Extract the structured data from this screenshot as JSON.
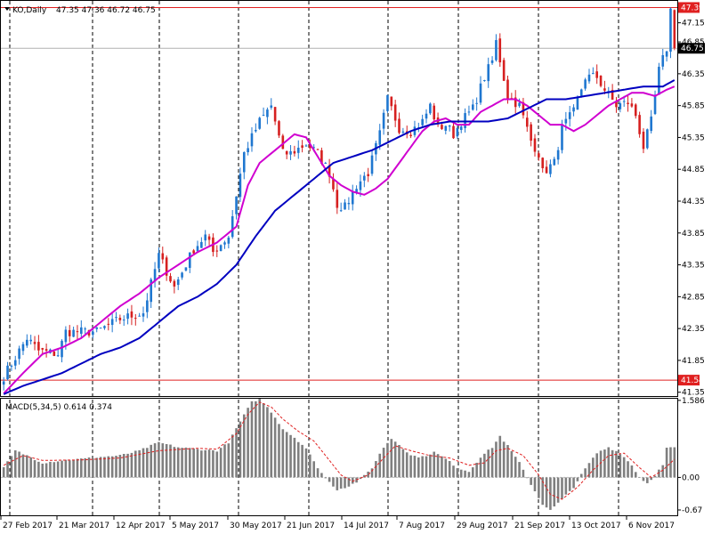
{
  "chart_data": {
    "type": "candlestick",
    "symbol": "KO",
    "timeframe": "Daily",
    "ohlc_readout": [
      "47.35",
      "47.36",
      "46.72",
      "46.75"
    ],
    "price_axis": {
      "ylim": [
        41.29,
        47.48
      ],
      "ticks": [
        "47.15",
        "46.85",
        "46.35",
        "45.85",
        "45.35",
        "44.85",
        "44.35",
        "43.85",
        "43.35",
        "42.85",
        "42.35",
        "41.85",
        "41.35"
      ],
      "tick_values": [
        47.15,
        46.85,
        46.35,
        45.85,
        45.35,
        44.85,
        44.35,
        43.85,
        43.35,
        42.85,
        42.35,
        41.85,
        41.35
      ]
    },
    "price_labels": {
      "high_line": "47.39",
      "low_line": "41.54",
      "current": "46.75"
    },
    "x_labels": [
      "27 Feb 2017",
      "21 Mar 2017",
      "12 Apr 2017",
      "5 May 2017",
      "30 May 2017",
      "21 Jun 2017",
      "14 Jul 2017",
      "7 Aug 2017",
      "29 Aug 2017",
      "21 Sep 2017",
      "13 Oct 2017",
      "6 Nov 2017"
    ],
    "grid": "vertical dashed",
    "close_path": [
      [
        0,
        41.6
      ],
      [
        6,
        42.2
      ],
      [
        9,
        42.0
      ],
      [
        14,
        41.95
      ],
      [
        16,
        42.3
      ],
      [
        24,
        42.3
      ],
      [
        30,
        42.5
      ],
      [
        36,
        42.6
      ],
      [
        40,
        43.5
      ],
      [
        44,
        43.0
      ],
      [
        49,
        43.6
      ],
      [
        52,
        43.8
      ],
      [
        54,
        43.55
      ],
      [
        58,
        43.8
      ],
      [
        62,
        45.1
      ],
      [
        66,
        45.6
      ],
      [
        69,
        45.85
      ],
      [
        72,
        45.1
      ],
      [
        74,
        45.1
      ],
      [
        78,
        45.25
      ],
      [
        81,
        45.1
      ],
      [
        84,
        44.8
      ],
      [
        86,
        44.3
      ],
      [
        88,
        44.25
      ],
      [
        91,
        44.6
      ],
      [
        94,
        44.8
      ],
      [
        97,
        45.4
      ],
      [
        99,
        45.95
      ],
      [
        102,
        45.5
      ],
      [
        105,
        45.45
      ],
      [
        108,
        45.6
      ],
      [
        110,
        45.85
      ],
      [
        112,
        45.5
      ],
      [
        114,
        45.55
      ],
      [
        116,
        45.4
      ],
      [
        118,
        45.6
      ],
      [
        121,
        45.8
      ],
      [
        124,
        46.3
      ],
      [
        126,
        46.55
      ],
      [
        127,
        46.85
      ],
      [
        130,
        46.0
      ],
      [
        133,
        45.85
      ],
      [
        136,
        45.3
      ],
      [
        138,
        45.1
      ],
      [
        139,
        44.8
      ],
      [
        142,
        44.95
      ],
      [
        144,
        45.5
      ],
      [
        147,
        45.75
      ],
      [
        150,
        46.3
      ],
      [
        153,
        46.3
      ],
      [
        155,
        46.1
      ],
      [
        158,
        45.85
      ],
      [
        161,
        45.9
      ],
      [
        163,
        45.7
      ],
      [
        165,
        45.2
      ],
      [
        167,
        45.6
      ],
      [
        169,
        46.4
      ],
      [
        171,
        46.75
      ],
      [
        172,
        47.35
      ],
      [
        173,
        46.75
      ]
    ],
    "series": [
      {
        "type": "line",
        "color": "#d000d0",
        "path": [
          [
            0,
            41.33
          ],
          [
            5,
            41.65
          ],
          [
            10,
            41.95
          ],
          [
            15,
            42.05
          ],
          [
            20,
            42.2
          ],
          [
            25,
            42.45
          ],
          [
            30,
            42.7
          ],
          [
            35,
            42.9
          ],
          [
            40,
            43.15
          ],
          [
            45,
            43.35
          ],
          [
            50,
            43.55
          ],
          [
            55,
            43.7
          ],
          [
            60,
            43.95
          ],
          [
            63,
            44.6
          ],
          [
            66,
            44.95
          ],
          [
            69,
            45.1
          ],
          [
            72,
            45.25
          ],
          [
            75,
            45.4
          ],
          [
            78,
            45.35
          ],
          [
            81,
            45.05
          ],
          [
            84,
            44.75
          ],
          [
            87,
            44.6
          ],
          [
            90,
            44.5
          ],
          [
            93,
            44.45
          ],
          [
            96,
            44.55
          ],
          [
            99,
            44.7
          ],
          [
            102,
            44.95
          ],
          [
            105,
            45.2
          ],
          [
            108,
            45.45
          ],
          [
            111,
            45.6
          ],
          [
            114,
            45.65
          ],
          [
            117,
            45.55
          ],
          [
            120,
            45.55
          ],
          [
            123,
            45.75
          ],
          [
            126,
            45.85
          ],
          [
            129,
            45.95
          ],
          [
            132,
            45.95
          ],
          [
            135,
            45.85
          ],
          [
            138,
            45.7
          ],
          [
            141,
            45.55
          ],
          [
            144,
            45.55
          ],
          [
            147,
            45.45
          ],
          [
            150,
            45.55
          ],
          [
            153,
            45.7
          ],
          [
            156,
            45.85
          ],
          [
            159,
            45.95
          ],
          [
            162,
            46.05
          ],
          [
            165,
            46.05
          ],
          [
            168,
            46.0
          ],
          [
            171,
            46.1
          ],
          [
            173,
            46.15
          ]
        ]
      },
      {
        "type": "line",
        "color": "#0000c0",
        "path": [
          [
            0,
            41.32
          ],
          [
            5,
            41.45
          ],
          [
            10,
            41.55
          ],
          [
            15,
            41.65
          ],
          [
            20,
            41.8
          ],
          [
            25,
            41.95
          ],
          [
            30,
            42.05
          ],
          [
            35,
            42.2
          ],
          [
            40,
            42.45
          ],
          [
            45,
            42.7
          ],
          [
            50,
            42.85
          ],
          [
            55,
            43.05
          ],
          [
            60,
            43.35
          ],
          [
            65,
            43.8
          ],
          [
            70,
            44.2
          ],
          [
            75,
            44.45
          ],
          [
            80,
            44.7
          ],
          [
            85,
            44.95
          ],
          [
            90,
            45.05
          ],
          [
            95,
            45.15
          ],
          [
            100,
            45.3
          ],
          [
            105,
            45.45
          ],
          [
            110,
            45.55
          ],
          [
            115,
            45.6
          ],
          [
            120,
            45.6
          ],
          [
            125,
            45.6
          ],
          [
            130,
            45.65
          ],
          [
            135,
            45.8
          ],
          [
            140,
            45.95
          ],
          [
            145,
            45.95
          ],
          [
            150,
            46.0
          ],
          [
            155,
            46.05
          ],
          [
            160,
            46.1
          ],
          [
            165,
            46.15
          ],
          [
            170,
            46.15
          ],
          [
            173,
            46.25
          ]
        ]
      }
    ],
    "macd": {
      "label": "MACD(5,34,5)",
      "values": [
        "0.614",
        "0.374"
      ],
      "ylim": [
        -0.78,
        1.62
      ],
      "ticks": [
        "1.586",
        "0.00",
        "-0.67"
      ],
      "tick_values": [
        1.586,
        0.0,
        -0.67
      ],
      "histogram_path": [
        [
          0,
          0.2
        ],
        [
          3,
          0.55
        ],
        [
          6,
          0.45
        ],
        [
          10,
          0.3
        ],
        [
          15,
          0.35
        ],
        [
          20,
          0.38
        ],
        [
          25,
          0.42
        ],
        [
          30,
          0.45
        ],
        [
          35,
          0.55
        ],
        [
          40,
          0.72
        ],
        [
          45,
          0.62
        ],
        [
          50,
          0.58
        ],
        [
          55,
          0.55
        ],
        [
          58,
          0.72
        ],
        [
          61,
          1.15
        ],
        [
          64,
          1.55
        ],
        [
          66,
          1.62
        ],
        [
          69,
          1.35
        ],
        [
          72,
          1.0
        ],
        [
          75,
          0.82
        ],
        [
          78,
          0.6
        ],
        [
          80,
          0.32
        ],
        [
          83,
          -0.02
        ],
        [
          86,
          -0.25
        ],
        [
          89,
          -0.18
        ],
        [
          92,
          -0.05
        ],
        [
          95,
          0.2
        ],
        [
          98,
          0.62
        ],
        [
          100,
          0.8
        ],
        [
          102,
          0.68
        ],
        [
          105,
          0.45
        ],
        [
          108,
          0.42
        ],
        [
          111,
          0.52
        ],
        [
          114,
          0.38
        ],
        [
          117,
          0.2
        ],
        [
          120,
          0.12
        ],
        [
          123,
          0.42
        ],
        [
          126,
          0.62
        ],
        [
          128,
          0.85
        ],
        [
          130,
          0.65
        ],
        [
          133,
          0.3
        ],
        [
          136,
          -0.15
        ],
        [
          139,
          -0.55
        ],
        [
          141,
          -0.68
        ],
        [
          144,
          -0.45
        ],
        [
          147,
          -0.2
        ],
        [
          150,
          0.18
        ],
        [
          153,
          0.5
        ],
        [
          156,
          0.62
        ],
        [
          159,
          0.5
        ],
        [
          162,
          0.25
        ],
        [
          164,
          0.0
        ],
        [
          166,
          -0.12
        ],
        [
          168,
          0.05
        ],
        [
          170,
          0.25
        ],
        [
          171,
          0.6
        ],
        [
          173,
          0.614
        ]
      ],
      "signal_path": [
        [
          0,
          0.25
        ],
        [
          5,
          0.45
        ],
        [
          10,
          0.35
        ],
        [
          20,
          0.36
        ],
        [
          30,
          0.4
        ],
        [
          40,
          0.55
        ],
        [
          50,
          0.6
        ],
        [
          55,
          0.58
        ],
        [
          60,
          0.9
        ],
        [
          63,
          1.3
        ],
        [
          66,
          1.55
        ],
        [
          69,
          1.45
        ],
        [
          72,
          1.2
        ],
        [
          76,
          0.95
        ],
        [
          80,
          0.75
        ],
        [
          84,
          0.35
        ],
        [
          87,
          0.05
        ],
        [
          90,
          -0.08
        ],
        [
          94,
          0.05
        ],
        [
          98,
          0.4
        ],
        [
          101,
          0.65
        ],
        [
          105,
          0.55
        ],
        [
          110,
          0.45
        ],
        [
          115,
          0.4
        ],
        [
          120,
          0.25
        ],
        [
          124,
          0.3
        ],
        [
          127,
          0.55
        ],
        [
          130,
          0.6
        ],
        [
          134,
          0.45
        ],
        [
          138,
          0.05
        ],
        [
          141,
          -0.35
        ],
        [
          144,
          -0.45
        ],
        [
          148,
          -0.2
        ],
        [
          152,
          0.15
        ],
        [
          156,
          0.45
        ],
        [
          160,
          0.5
        ],
        [
          164,
          0.2
        ],
        [
          167,
          0.0
        ],
        [
          170,
          0.15
        ],
        [
          173,
          0.374
        ]
      ]
    }
  }
}
